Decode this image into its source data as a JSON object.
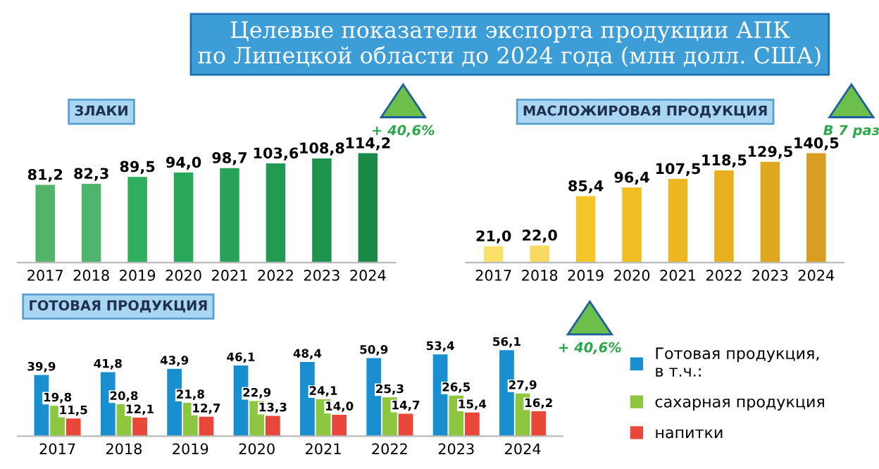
{
  "chart_data": [
    {
      "type": "bar",
      "title": "Целевые показатели экспорта продукции АПК\nпо Липецкой области до 2024 года (млн долл. США)",
      "subtitle": "ЗЛАКИ",
      "categories": [
        "2017",
        "2018",
        "2019",
        "2020",
        "2021",
        "2022",
        "2023",
        "2024"
      ],
      "values": [
        81.2,
        82.3,
        89.5,
        94.0,
        98.7,
        103.6,
        108.8,
        114.2
      ],
      "colors": [
        "#52b36a",
        "#4fb56c",
        "#2fae5e",
        "#2aa85a",
        "#28a257",
        "#229a52",
        "#1f924d",
        "#1b8a48"
      ],
      "value_labels": [
        "81,2",
        "82,3",
        "89,5",
        "94,0",
        "98,7",
        "103,6",
        "108,8",
        "114,2"
      ],
      "annotations": [
        "+ 40,6%"
      ]
    },
    {
      "type": "bar",
      "subtitle": "МАСЛОЖИРОВАЯ ПРОДУКЦИЯ",
      "categories": [
        "2017",
        "2018",
        "2019",
        "2020",
        "2021",
        "2022",
        "2023",
        "2024"
      ],
      "values": [
        21.0,
        22.0,
        85.4,
        96.4,
        107.5,
        118.5,
        129.5,
        140.5
      ],
      "colors": [
        "#fbe06a",
        "#f9da60",
        "#f5c52a",
        "#f1be22",
        "#edb720",
        "#e8af1f",
        "#e0a721",
        "#d89e22"
      ],
      "value_labels": [
        "21,0",
        "22,0",
        "85,4",
        "96,4",
        "107,5",
        "118,5",
        "129,5",
        "140,5"
      ],
      "annotations": [
        "В 7 раз"
      ]
    },
    {
      "type": "bar",
      "subtitle": "ГОТОВАЯ ПРОДУКЦИЯ",
      "categories": [
        "2017",
        "2018",
        "2019",
        "2020",
        "2021",
        "2022",
        "2023",
        "2024"
      ],
      "series": [
        {
          "name": "Готовая продукция,\nв т.ч.:",
          "color": "#1a8fd0",
          "values": [
            39.9,
            41.8,
            43.9,
            46.1,
            48.4,
            50.9,
            53.4,
            56.1
          ],
          "value_labels": [
            "39,9",
            "41,8",
            "43,9",
            "46,1",
            "48,4",
            "50,9",
            "53,4",
            "56,1"
          ]
        },
        {
          "name": "сахарная продукция",
          "color": "#8dc63f",
          "values": [
            19.8,
            20.8,
            21.8,
            22.9,
            24.1,
            25.3,
            26.5,
            27.9
          ],
          "value_labels": [
            "19,8",
            "20,8",
            "21,8",
            "22,9",
            "24,1",
            "25,3",
            "26,5",
            "27,9"
          ]
        },
        {
          "name": "напитки",
          "color": "#e8473a",
          "values": [
            11.5,
            12.1,
            12.7,
            13.3,
            14.0,
            14.7,
            15.4,
            16.2
          ],
          "value_labels": [
            "11,5",
            "12,1",
            "12,7",
            "13,3",
            "14,0",
            "14,7",
            "15,4",
            "16,2"
          ]
        }
      ],
      "legend": "right",
      "annotations": [
        "+ 40,6%"
      ]
    }
  ]
}
